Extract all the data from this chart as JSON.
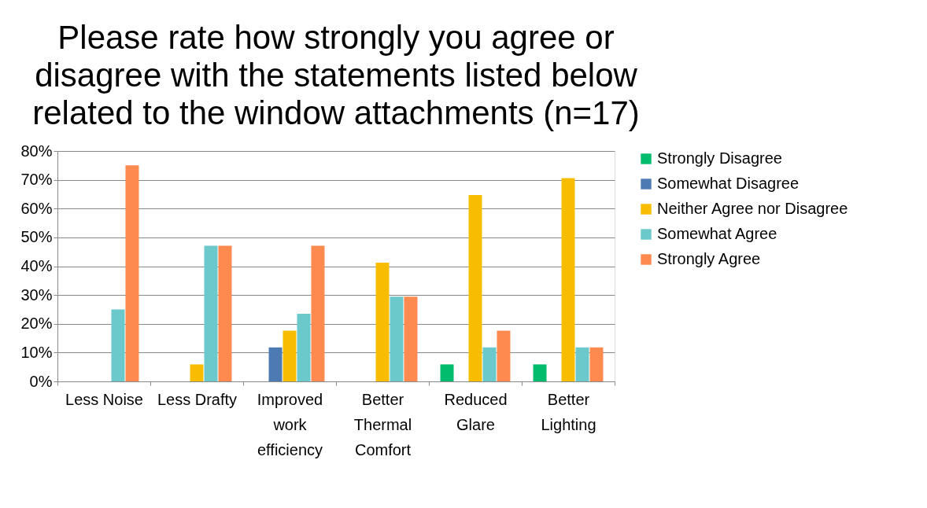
{
  "chart_data": {
    "type": "bar",
    "title": "Please rate how strongly you agree or disagree with the statements listed below related to the window attachments (n=17)",
    "categories": [
      "Less Noise",
      "Less Drafty",
      "Improved work efficiency",
      "Better Thermal Comfort",
      "Reduced Glare",
      "Better Lighting"
    ],
    "series": [
      {
        "name": "Strongly Disagree",
        "color": "#00bc6c",
        "values": [
          0,
          0,
          0,
          0,
          5.9,
          5.9
        ]
      },
      {
        "name": "Somewhat Disagree",
        "color": "#4e7ab4",
        "values": [
          0,
          0,
          11.8,
          0,
          0,
          0
        ]
      },
      {
        "name": "Neither Agree nor Disagree",
        "color": "#f8bd00",
        "values": [
          0,
          5.9,
          17.6,
          41.2,
          64.7,
          70.6
        ]
      },
      {
        "name": "Somewhat Agree",
        "color": "#6bc8cb",
        "values": [
          25,
          47.1,
          23.5,
          29.4,
          11.8,
          11.8
        ]
      },
      {
        "name": "Strongly Agree",
        "color": "#fe8a50",
        "values": [
          75,
          47.1,
          47.1,
          29.4,
          17.6,
          11.8
        ]
      }
    ],
    "ylim": [
      0,
      80
    ],
    "yticks": [
      {
        "value": 0,
        "label": "0%"
      },
      {
        "value": 10,
        "label": "10%"
      },
      {
        "value": 20,
        "label": "20%"
      },
      {
        "value": 30,
        "label": "30%"
      },
      {
        "value": 40,
        "label": "40%"
      },
      {
        "value": 50,
        "label": "50%"
      },
      {
        "value": 60,
        "label": "60%"
      },
      {
        "value": 70,
        "label": "70%"
      },
      {
        "value": 80,
        "label": "80%"
      }
    ],
    "grid": "y",
    "legend": "right"
  }
}
